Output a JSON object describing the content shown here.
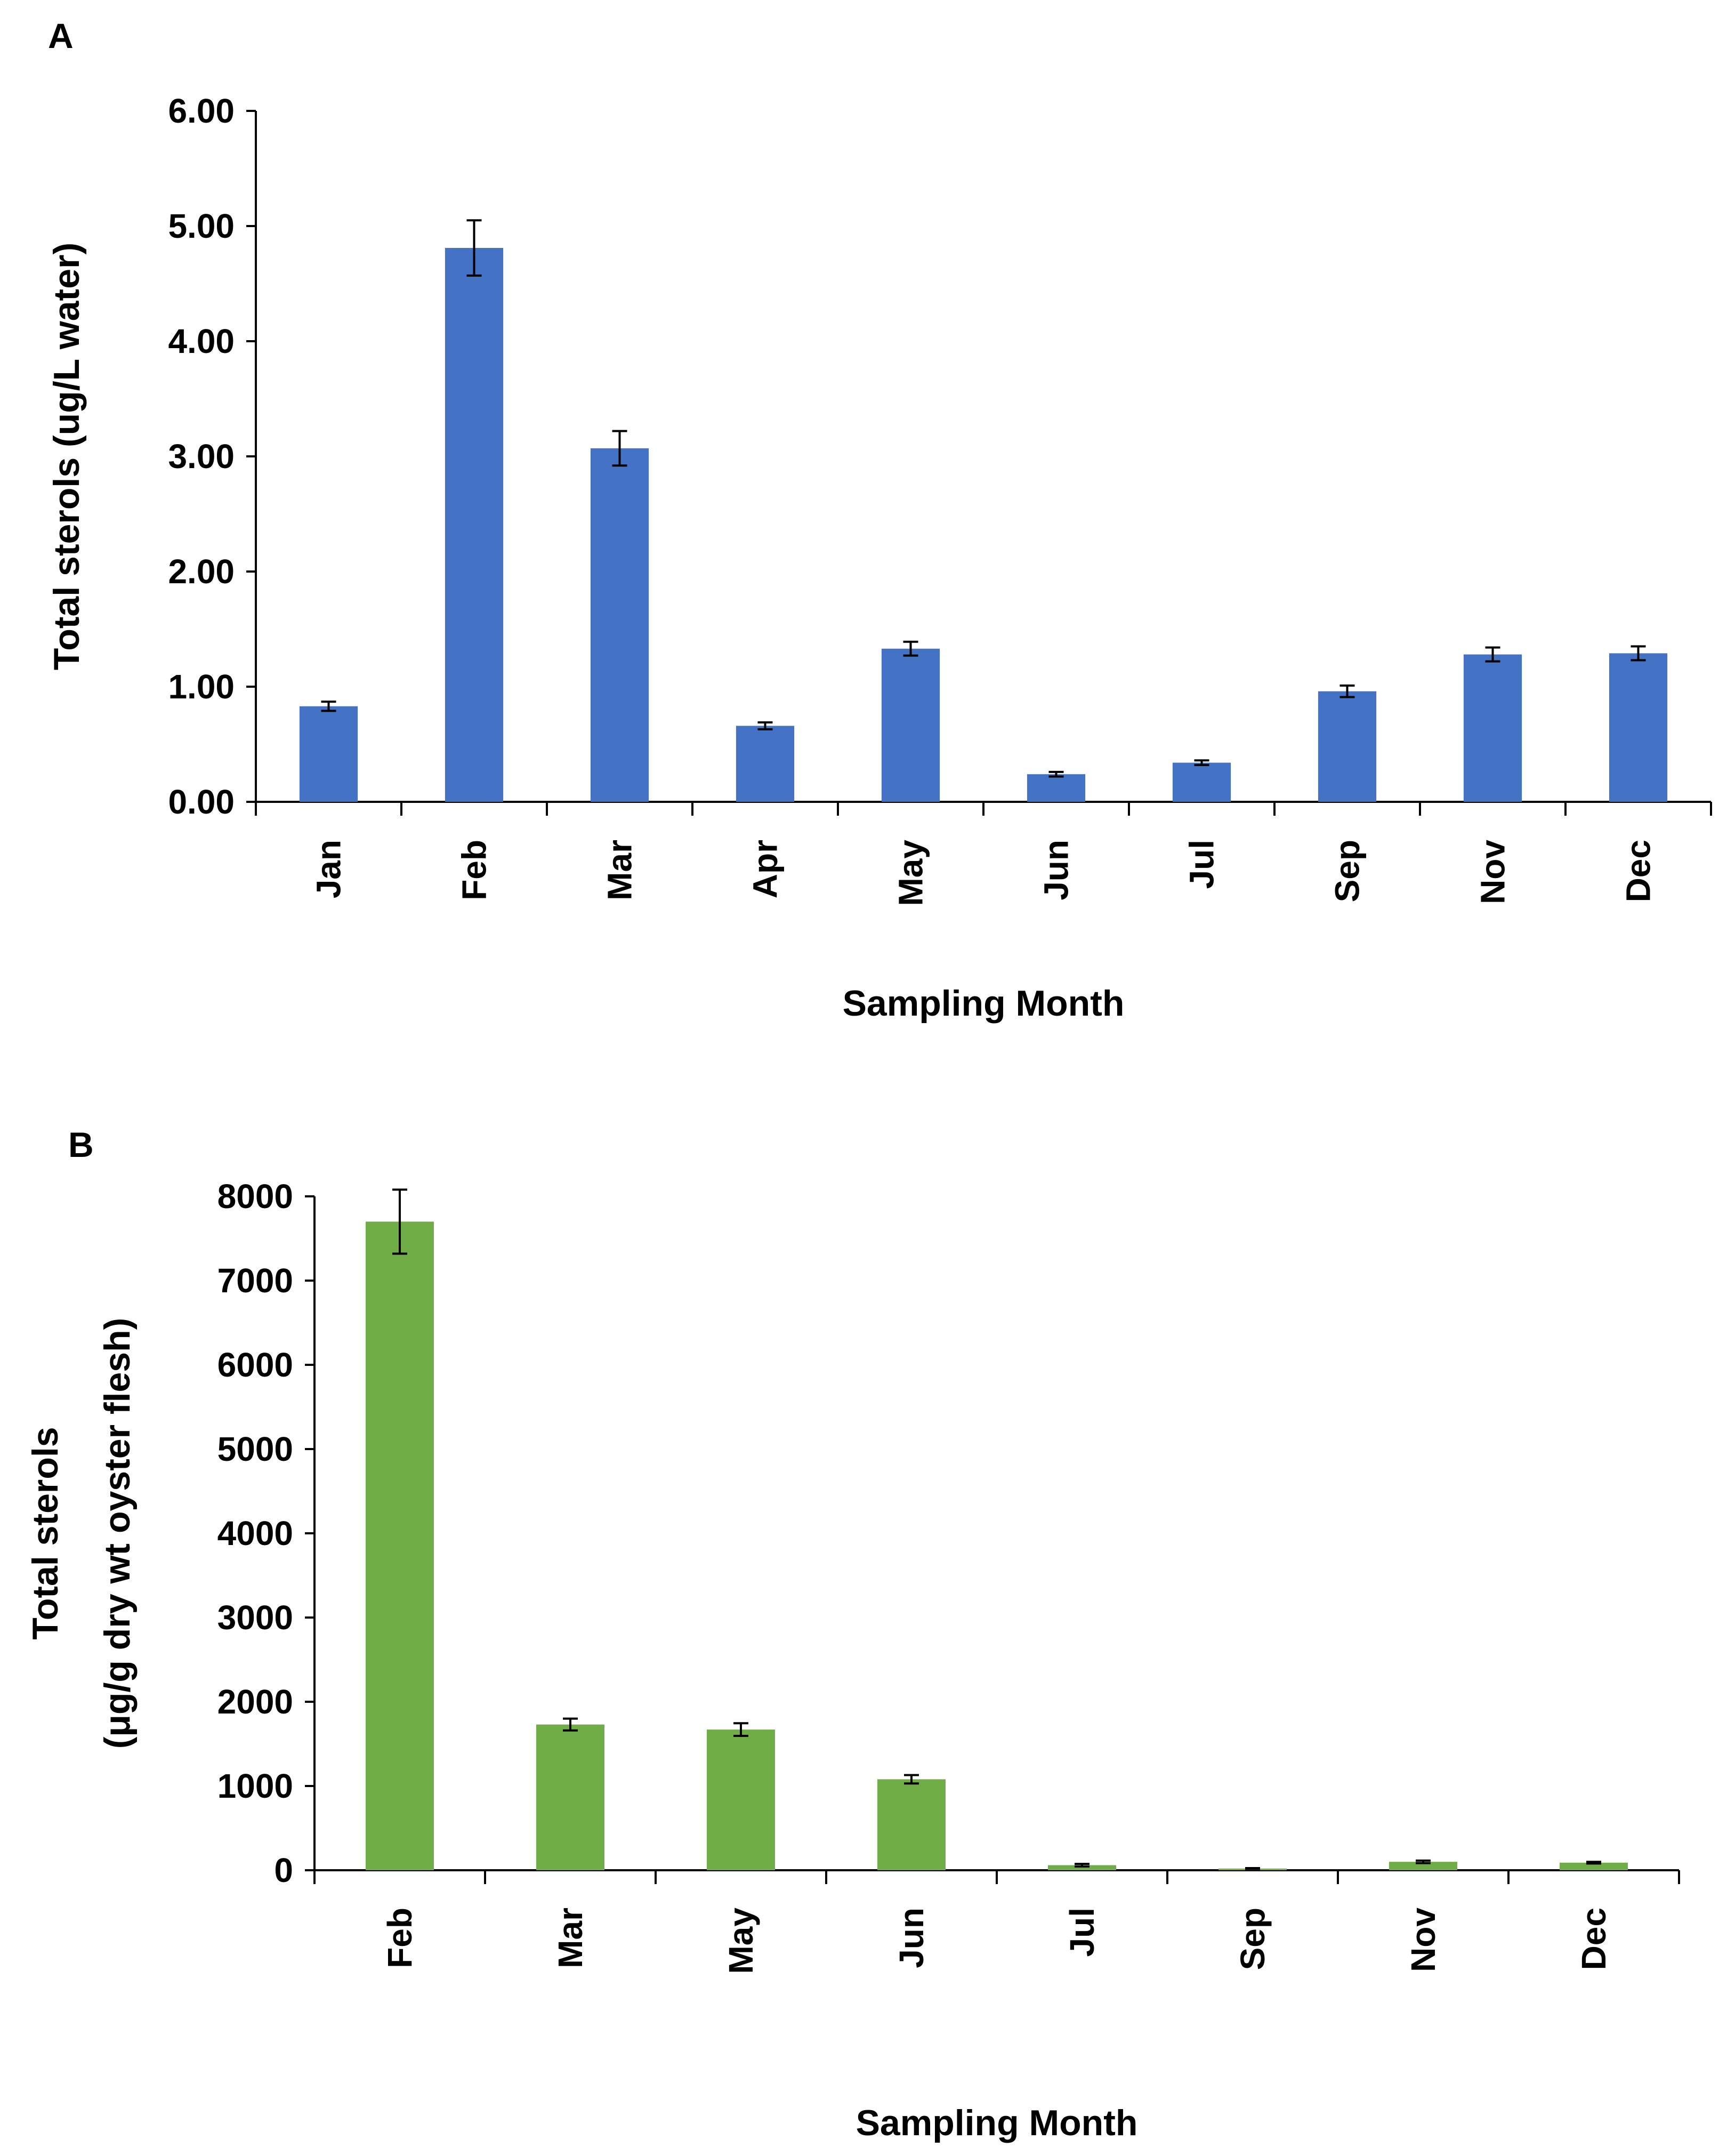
{
  "chart_data": [
    {
      "type": "bar",
      "panel_label": "A",
      "categories": [
        "Jan",
        "Feb",
        "Mar",
        "Apr",
        "May",
        "Jun",
        "Jul",
        "Sep",
        "Nov",
        "Dec"
      ],
      "values": [
        0.83,
        4.81,
        3.07,
        0.66,
        1.33,
        0.24,
        0.34,
        0.96,
        1.28,
        1.29
      ],
      "errors": [
        0.04,
        0.24,
        0.15,
        0.03,
        0.06,
        0.02,
        0.02,
        0.05,
        0.06,
        0.06
      ],
      "ylabel": "Total sterols (ug/L water)",
      "ylabel_lines": [
        "Total sterols (ug/L water)"
      ],
      "xlabel": "Sampling Month",
      "ylim": [
        0,
        6
      ],
      "yticks": [
        "0.00",
        "1.00",
        "2.00",
        "3.00",
        "4.00",
        "5.00",
        "6.00"
      ],
      "bar_color": "#4472C4",
      "grid": false
    },
    {
      "type": "bar",
      "panel_label": "B",
      "categories": [
        "Feb",
        "Mar",
        "May",
        "Jun",
        "Jul",
        "Sep",
        "Nov",
        "Dec"
      ],
      "values": [
        7700,
        1730,
        1670,
        1080,
        60,
        20,
        100,
        90
      ],
      "errors": [
        380,
        70,
        75,
        50,
        15,
        5,
        15,
        10
      ],
      "ylabel": "Total sterols (μg/g dry wt oyster flesh)",
      "ylabel_lines": [
        "Total sterols",
        "(μg/g dry wt oyster flesh)"
      ],
      "xlabel": "Sampling Month",
      "ylim": [
        0,
        8000
      ],
      "yticks": [
        "0",
        "1000",
        "2000",
        "3000",
        "4000",
        "5000",
        "6000",
        "7000",
        "8000"
      ],
      "bar_color": "#70AD47",
      "grid": false
    }
  ]
}
